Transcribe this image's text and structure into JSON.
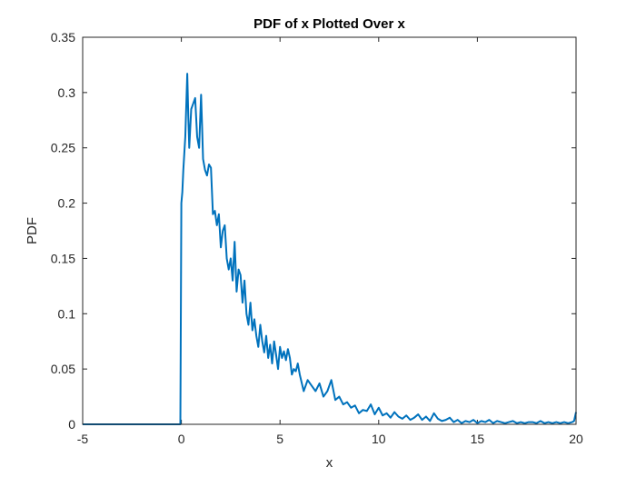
{
  "chart_data": {
    "type": "line",
    "title": "PDF of x Plotted Over x",
    "xlabel": "x",
    "ylabel": "PDF",
    "xlim": [
      -5,
      20
    ],
    "ylim": [
      0,
      0.35
    ],
    "xticks": [
      -5,
      0,
      5,
      10,
      15,
      20
    ],
    "xtick_labels": [
      "-5",
      "0",
      "5",
      "10",
      "15",
      "20"
    ],
    "yticks": [
      0,
      0.05,
      0.1,
      0.15,
      0.2,
      0.25,
      0.3,
      0.35
    ],
    "ytick_labels": [
      "0",
      "0.05",
      "0.1",
      "0.15",
      "0.2",
      "0.25",
      "0.3",
      "0.35"
    ],
    "grid": false,
    "line_color": "#0072BD",
    "series": [
      {
        "x": [
          -5,
          -0.05,
          0,
          0.05,
          0.1,
          0.2,
          0.3,
          0.35,
          0.4,
          0.5,
          0.6,
          0.7,
          0.8,
          0.9,
          1.0,
          1.05,
          1.1,
          1.2,
          1.3,
          1.4,
          1.5,
          1.6,
          1.7,
          1.8,
          1.9,
          2.0,
          2.1,
          2.2,
          2.3,
          2.4,
          2.5,
          2.6,
          2.7,
          2.8,
          2.9,
          3.0,
          3.1,
          3.2,
          3.3,
          3.4,
          3.5,
          3.6,
          3.7,
          3.8,
          3.9,
          4.0,
          4.1,
          4.2,
          4.3,
          4.4,
          4.5,
          4.6,
          4.7,
          4.8,
          4.9,
          5.0,
          5.1,
          5.2,
          5.3,
          5.4,
          5.5,
          5.6,
          5.7,
          5.8,
          5.9,
          6.0,
          6.2,
          6.4,
          6.6,
          6.8,
          7.0,
          7.2,
          7.4,
          7.6,
          7.8,
          8.0,
          8.2,
          8.4,
          8.6,
          8.8,
          9.0,
          9.2,
          9.4,
          9.6,
          9.8,
          10.0,
          10.2,
          10.4,
          10.6,
          10.8,
          11.0,
          11.2,
          11.4,
          11.6,
          11.8,
          12.0,
          12.2,
          12.4,
          12.6,
          12.8,
          13.0,
          13.2,
          13.4,
          13.6,
          13.8,
          14.0,
          14.2,
          14.4,
          14.6,
          14.8,
          15.0,
          15.2,
          15.4,
          15.6,
          15.8,
          16.0,
          16.2,
          16.4,
          16.6,
          16.8,
          17.0,
          17.2,
          17.4,
          17.6,
          17.8,
          18.0,
          18.2,
          18.4,
          18.6,
          18.8,
          19.0,
          19.2,
          19.4,
          19.6,
          19.8,
          19.9,
          20.0
        ],
        "y": [
          0,
          0,
          0.2,
          0.21,
          0.23,
          0.26,
          0.317,
          0.28,
          0.25,
          0.285,
          0.29,
          0.295,
          0.26,
          0.25,
          0.298,
          0.27,
          0.24,
          0.23,
          0.225,
          0.235,
          0.232,
          0.19,
          0.193,
          0.18,
          0.19,
          0.16,
          0.175,
          0.18,
          0.15,
          0.14,
          0.15,
          0.13,
          0.165,
          0.12,
          0.14,
          0.135,
          0.11,
          0.13,
          0.1,
          0.09,
          0.11,
          0.085,
          0.095,
          0.08,
          0.07,
          0.09,
          0.075,
          0.065,
          0.08,
          0.06,
          0.072,
          0.055,
          0.075,
          0.063,
          0.05,
          0.07,
          0.06,
          0.066,
          0.058,
          0.068,
          0.06,
          0.045,
          0.05,
          0.048,
          0.055,
          0.045,
          0.03,
          0.04,
          0.035,
          0.03,
          0.037,
          0.025,
          0.03,
          0.04,
          0.022,
          0.025,
          0.018,
          0.02,
          0.015,
          0.017,
          0.01,
          0.013,
          0.012,
          0.018,
          0.009,
          0.015,
          0.008,
          0.01,
          0.006,
          0.011,
          0.007,
          0.005,
          0.008,
          0.004,
          0.006,
          0.009,
          0.004,
          0.007,
          0.003,
          0.01,
          0.005,
          0.003,
          0.004,
          0.006,
          0.002,
          0.004,
          0.001,
          0.003,
          0.002,
          0.004,
          0.001,
          0.003,
          0.002,
          0.004,
          0.001,
          0.003,
          0.002,
          0.001,
          0.002,
          0.003,
          0.001,
          0.002,
          0.001,
          0.002,
          0.002,
          0.001,
          0.003,
          0.001,
          0.002,
          0.001,
          0.002,
          0.001,
          0.002,
          0.001,
          0.002,
          0.003,
          0.011
        ]
      }
    ]
  }
}
